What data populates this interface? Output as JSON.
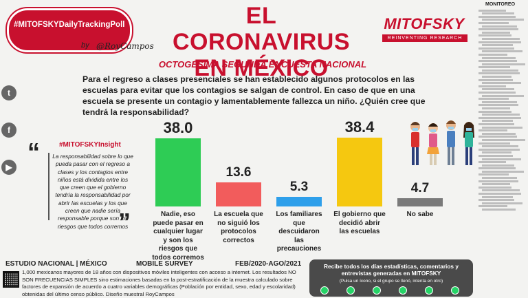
{
  "campaign": {
    "hashtag": "#MITOFSKYDailyTrackingPoll",
    "by": "by",
    "signature": "@RoyCampos"
  },
  "header": {
    "title_line1": "EL CORONAVIRUS",
    "title_line2": "EN MÉXICO",
    "subtitle": "OCTOGÉSIMA SEGUNDA ENCUESTA NACIONAL",
    "brand": "MITOFSKY",
    "tagline": "REINVENTING RESEARCH"
  },
  "question": "Para el regreso a clases presenciales se han establecido algunos protocolos en las escuelas para evitar que los contagios se salgan de control. En caso de que en una escuela se presente un contagio y lamentablemente fallezca un niño. ¿Quién cree que tendrá la responsabilidad?",
  "social": [
    {
      "icon": "twitter-icon",
      "glyph": "t"
    },
    {
      "icon": "facebook-icon",
      "glyph": "f"
    },
    {
      "icon": "youtube-icon",
      "glyph": "▶"
    }
  ],
  "insight": {
    "tag": "#MITOFSKYInsight",
    "text": "La responsabilidad sobre lo que pueda pasar con el regreso a clases y los contagios entre niños está dividida entre los que creen que el gobierno tendría la responsabilidad por abrir las escuelas y los que creen que nadie sería responsable porque son los riesgos que todos corremos"
  },
  "chart_data": {
    "type": "bar",
    "categories": [
      "Nadie, eso puede pasar en cualquier lugar y son los riesgos que todos corremos",
      "La escuela que no siguió los protocolos correctos",
      "Los familiares que descuidaron las precauciones",
      "El gobierno que decidió abrir las escuelas",
      "No sabe"
    ],
    "values": [
      38.0,
      13.6,
      5.3,
      38.4,
      4.7
    ],
    "value_labels": [
      "38.0",
      "13.6",
      "5.3",
      "38.4",
      "4.7"
    ],
    "colors": [
      "#2ecc55",
      "#f25c5c",
      "#2e9fea",
      "#f5c810",
      "#7a7a7a"
    ],
    "ylim": [
      0,
      40
    ]
  },
  "footer": {
    "study": "ESTUDIO NACIONAL | MÉXICO",
    "survey": "MOBILE SURVEY",
    "dates": "FEB/2020-AGO/2021",
    "note": "1,000 mexicanos mayores de 18 años con dispositivos móviles inteligentes con acceso a internet. Los resultados NO SON FRECUENCIAS SIMPLES sino estimaciones basadas en la post-estratificación de la muestra calculado sobre factores de expansión de acuerdo a cuatro variables demográficas (Población por entidad, sexo, edad y escolaridad) obtenidas del último censo público. Diseño muestral RoyCampos"
  },
  "cta": {
    "text": "Recibe todos los días estadísticas, comentarios y entrevistas generadas en MITOFSKY",
    "note": "(Pulsa un ícono, si el grupo se llenó, intenta en otro)",
    "buttons": [
      "whatsapp-icon",
      "whatsapp-icon",
      "whatsapp-icon",
      "whatsapp-icon",
      "whatsapp-icon",
      "whatsapp-icon"
    ]
  },
  "monitor": {
    "title": "MONITOREO"
  }
}
